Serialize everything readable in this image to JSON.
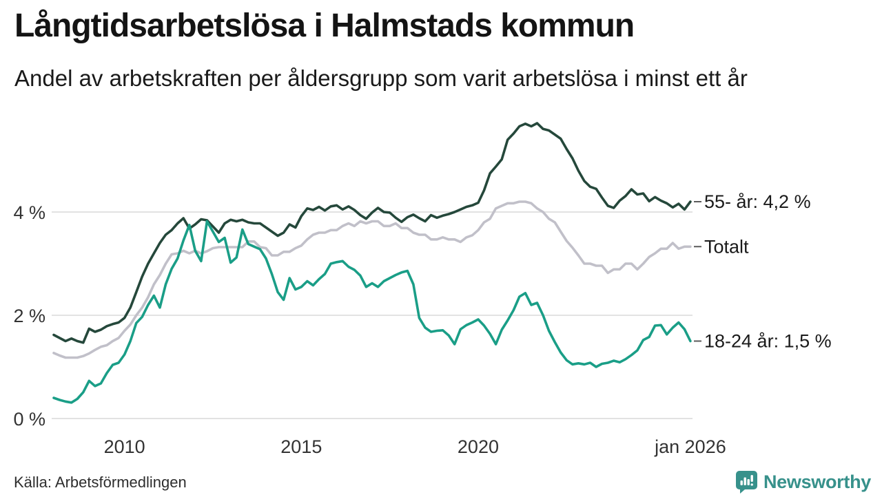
{
  "header": {
    "title": "Långtidsarbetslösa i Halmstads kommun",
    "subtitle": "Andel av arbetskraften per åldersgrupp som varit arbetslösa i minst ett år"
  },
  "footer": {
    "source": "Källa: Arbetsförmedlingen",
    "brand": "Newsworthy"
  },
  "colors": {
    "title_text": "#141414",
    "axis_text": "#333333",
    "grid": "#e2e2e2",
    "label_tick": "#5a5a5a",
    "end_label_text": "#1a1a1a",
    "brand_teal": "#37918b",
    "series_55": "#25483b",
    "series_total": "#c1c0c9",
    "series_youth": "#1a9e87"
  },
  "chart_data": {
    "type": "line",
    "title": "Långtidsarbetslösa i Halmstads kommun",
    "subtitle": "Andel av arbetskraften per åldersgrupp som varit arbetslösa i minst ett år",
    "grid": "horizontal-only",
    "legend_position": "right-end-labels",
    "x_axis": {
      "start": 2008.0,
      "end": 2026.0,
      "step_years": 0.166667,
      "ticks": [
        {
          "label": "2010",
          "year": 2010
        },
        {
          "label": "2015",
          "year": 2015
        },
        {
          "label": "2020",
          "year": 2020
        },
        {
          "label": "jan 2026",
          "year": 2026
        }
      ]
    },
    "y_axis": {
      "unit": "%",
      "ylim": [
        0,
        6.1
      ],
      "values": [
        0,
        2,
        4
      ],
      "tick_labels": [
        "0 %",
        "2 %",
        "4 %"
      ]
    },
    "series": [
      {
        "id": "55",
        "name": "55- år",
        "end_label": "55- år: 4,2 %",
        "last_value": 4.2,
        "color": "#25483b",
        "values": [
          1.62,
          1.56,
          1.5,
          1.55,
          1.5,
          1.47,
          1.74,
          1.68,
          1.72,
          1.79,
          1.83,
          1.86,
          1.95,
          2.15,
          2.45,
          2.75,
          3.0,
          3.2,
          3.4,
          3.56,
          3.65,
          3.78,
          3.88,
          3.68,
          3.76,
          3.86,
          3.84,
          3.72,
          3.6,
          3.78,
          3.85,
          3.82,
          3.85,
          3.8,
          3.78,
          3.78,
          3.7,
          3.62,
          3.54,
          3.6,
          3.76,
          3.7,
          3.92,
          4.07,
          4.04,
          4.1,
          4.03,
          4.11,
          4.13,
          4.05,
          4.11,
          4.04,
          3.94,
          3.87,
          3.99,
          4.08,
          4.0,
          3.99,
          3.89,
          3.81,
          3.9,
          3.95,
          3.88,
          3.82,
          3.94,
          3.89,
          3.93,
          3.96,
          4.0,
          4.05,
          4.1,
          4.13,
          4.18,
          4.42,
          4.75,
          4.88,
          5.02,
          5.4,
          5.52,
          5.66,
          5.71,
          5.66,
          5.72,
          5.61,
          5.58,
          5.5,
          5.42,
          5.22,
          5.04,
          4.8,
          4.6,
          4.49,
          4.45,
          4.28,
          4.12,
          4.08,
          4.22,
          4.31,
          4.44,
          4.34,
          4.36,
          4.21,
          4.29,
          4.22,
          4.17,
          4.09,
          4.16,
          4.05,
          4.2
        ]
      },
      {
        "id": "total",
        "name": "Totalt",
        "end_label": "Totalt",
        "last_value": 3.3,
        "color": "#c1c0c9",
        "values": [
          1.27,
          1.22,
          1.18,
          1.18,
          1.18,
          1.21,
          1.26,
          1.33,
          1.39,
          1.42,
          1.5,
          1.56,
          1.7,
          1.82,
          2.0,
          2.15,
          2.35,
          2.6,
          2.78,
          3.0,
          3.18,
          3.2,
          3.25,
          3.2,
          3.25,
          3.2,
          3.24,
          3.3,
          3.32,
          3.32,
          3.32,
          3.32,
          3.32,
          3.43,
          3.43,
          3.32,
          3.3,
          3.16,
          3.16,
          3.23,
          3.23,
          3.3,
          3.35,
          3.47,
          3.56,
          3.6,
          3.6,
          3.65,
          3.65,
          3.73,
          3.78,
          3.73,
          3.82,
          3.78,
          3.82,
          3.82,
          3.73,
          3.73,
          3.78,
          3.69,
          3.69,
          3.6,
          3.56,
          3.56,
          3.47,
          3.47,
          3.51,
          3.47,
          3.47,
          3.42,
          3.51,
          3.55,
          3.65,
          3.8,
          3.87,
          4.07,
          4.12,
          4.17,
          4.17,
          4.2,
          4.2,
          4.17,
          4.07,
          4.0,
          3.87,
          3.8,
          3.62,
          3.44,
          3.31,
          3.16,
          3.0,
          3.0,
          2.96,
          2.96,
          2.82,
          2.89,
          2.89,
          3.0,
          3.0,
          2.89,
          3.0,
          3.13,
          3.2,
          3.29,
          3.29,
          3.4,
          3.29,
          3.33,
          3.33
        ]
      },
      {
        "id": "youth",
        "name": "18-24 år",
        "end_label": "18-24 år: 1,5 %",
        "last_value": 1.5,
        "color": "#1a9e87",
        "values": [
          0.4,
          0.36,
          0.33,
          0.31,
          0.38,
          0.51,
          0.73,
          0.63,
          0.68,
          0.88,
          1.04,
          1.08,
          1.24,
          1.5,
          1.85,
          1.97,
          2.2,
          2.38,
          2.15,
          2.6,
          2.9,
          3.1,
          3.45,
          3.75,
          3.25,
          3.05,
          3.82,
          3.62,
          3.42,
          3.5,
          3.02,
          3.12,
          3.66,
          3.38,
          3.33,
          3.28,
          3.1,
          2.8,
          2.45,
          2.3,
          2.72,
          2.5,
          2.55,
          2.66,
          2.58,
          2.7,
          2.8,
          3.0,
          3.03,
          3.05,
          2.94,
          2.88,
          2.77,
          2.55,
          2.62,
          2.55,
          2.66,
          2.72,
          2.78,
          2.83,
          2.86,
          2.6,
          1.95,
          1.76,
          1.68,
          1.7,
          1.71,
          1.61,
          1.44,
          1.73,
          1.81,
          1.86,
          1.92,
          1.8,
          1.64,
          1.44,
          1.72,
          1.9,
          2.1,
          2.36,
          2.43,
          2.2,
          2.24,
          2.0,
          1.7,
          1.48,
          1.28,
          1.13,
          1.05,
          1.07,
          1.05,
          1.08,
          1.0,
          1.06,
          1.08,
          1.12,
          1.09,
          1.15,
          1.23,
          1.32,
          1.52,
          1.58,
          1.8,
          1.81,
          1.63,
          1.76,
          1.86,
          1.73,
          1.5
        ]
      }
    ]
  }
}
